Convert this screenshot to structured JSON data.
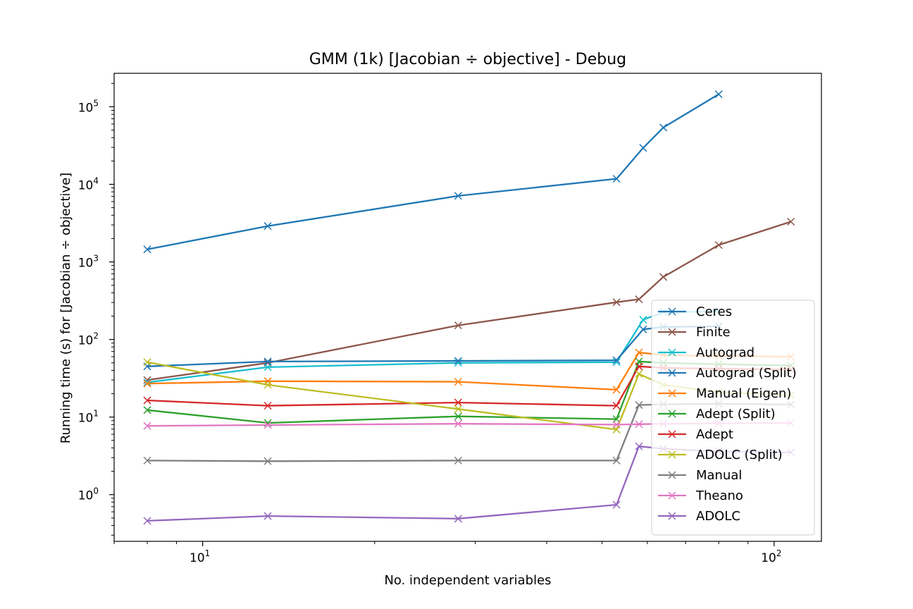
{
  "chart_data": {
    "type": "line",
    "title": "GMM (1k) [Jacobian ÷ objective] - Debug",
    "xlabel": "No. independent variables",
    "ylabel": "Running time (s) for [Jacobian ÷ objective]",
    "xscale": "log",
    "yscale": "log",
    "xlim": [
      7.0,
      121.0
    ],
    "ylim": [
      0.25,
      270000
    ],
    "x_ticks": [
      {
        "value": 10,
        "base": "10",
        "exp": "1"
      },
      {
        "value": 100,
        "base": "10",
        "exp": "2"
      }
    ],
    "y_ticks": [
      {
        "value": 1,
        "base": "10",
        "exp": "0"
      },
      {
        "value": 10,
        "base": "10",
        "exp": "1"
      },
      {
        "value": 100,
        "base": "10",
        "exp": "2"
      },
      {
        "value": 1000,
        "base": "10",
        "exp": "3"
      },
      {
        "value": 10000,
        "base": "10",
        "exp": "4"
      },
      {
        "value": 100000,
        "base": "10",
        "exp": "5"
      }
    ],
    "grid": false,
    "legend_position": "lower-right",
    "series": [
      {
        "name": "Ceres",
        "color": "#1f77b4",
        "x": [
          8,
          13,
          28,
          53,
          59,
          64,
          80
        ],
        "y": [
          1450,
          2900,
          7100,
          11800,
          29500,
          54000,
          145000
        ]
      },
      {
        "name": "Finite",
        "color": "#8c564b",
        "x": [
          8,
          13,
          28,
          53,
          58,
          64,
          80,
          107
        ],
        "y": [
          30,
          50,
          152,
          302,
          330,
          640,
          1650,
          3300
        ]
      },
      {
        "name": "Autograd",
        "color": "#17becf",
        "x": [
          8,
          13,
          28,
          53,
          59,
          64,
          80
        ],
        "y": [
          28,
          44,
          50,
          51,
          180,
          225,
          230
        ]
      },
      {
        "name": "Autograd (Split)",
        "color": "#1f77b4",
        "x": [
          8,
          13,
          28,
          53,
          59,
          64,
          80
        ],
        "y": [
          45,
          52,
          53,
          54,
          135,
          145,
          148
        ]
      },
      {
        "name": "Manual (Eigen)",
        "color": "#ff7f0e",
        "x": [
          8,
          13,
          28,
          53,
          58,
          64,
          80,
          107
        ],
        "y": [
          27,
          29,
          28.5,
          22.5,
          68,
          63,
          61,
          60
        ]
      },
      {
        "name": "Adept (Split)",
        "color": "#2ca02c",
        "x": [
          8,
          13,
          28,
          53,
          58,
          64,
          80,
          107
        ],
        "y": [
          12.3,
          8.4,
          10.2,
          9.4,
          52,
          50,
          48,
          46
        ]
      },
      {
        "name": "Adept",
        "color": "#d62728",
        "x": [
          8,
          13,
          28,
          53,
          58,
          64,
          80,
          107
        ],
        "y": [
          16.4,
          14,
          15.4,
          14,
          45,
          43,
          42,
          41
        ]
      },
      {
        "name": "ADOLC (Split)",
        "color": "#bcbd22",
        "x": [
          8,
          13,
          28,
          53,
          58,
          64,
          80,
          107
        ],
        "y": [
          51,
          26,
          12.7,
          6.9,
          36,
          26,
          21,
          19
        ]
      },
      {
        "name": "Manual",
        "color": "#7f7f7f",
        "x": [
          8,
          13,
          28,
          53,
          58,
          64,
          80,
          107
        ],
        "y": [
          2.75,
          2.7,
          2.75,
          2.75,
          14.3,
          14.6,
          14.8,
          14.5
        ]
      },
      {
        "name": "Theano",
        "color": "#e377c2",
        "x": [
          8,
          13,
          28,
          53,
          58,
          64,
          80,
          107
        ],
        "y": [
          7.7,
          7.9,
          8.2,
          8.0,
          8.1,
          8.2,
          8.3,
          8.4
        ]
      },
      {
        "name": "ADOLC",
        "color": "#9467bd",
        "x": [
          8,
          13,
          28,
          53,
          58,
          64,
          80,
          107
        ],
        "y": [
          0.46,
          0.53,
          0.49,
          0.74,
          4.2,
          3.9,
          3.6,
          3.5
        ]
      }
    ]
  }
}
